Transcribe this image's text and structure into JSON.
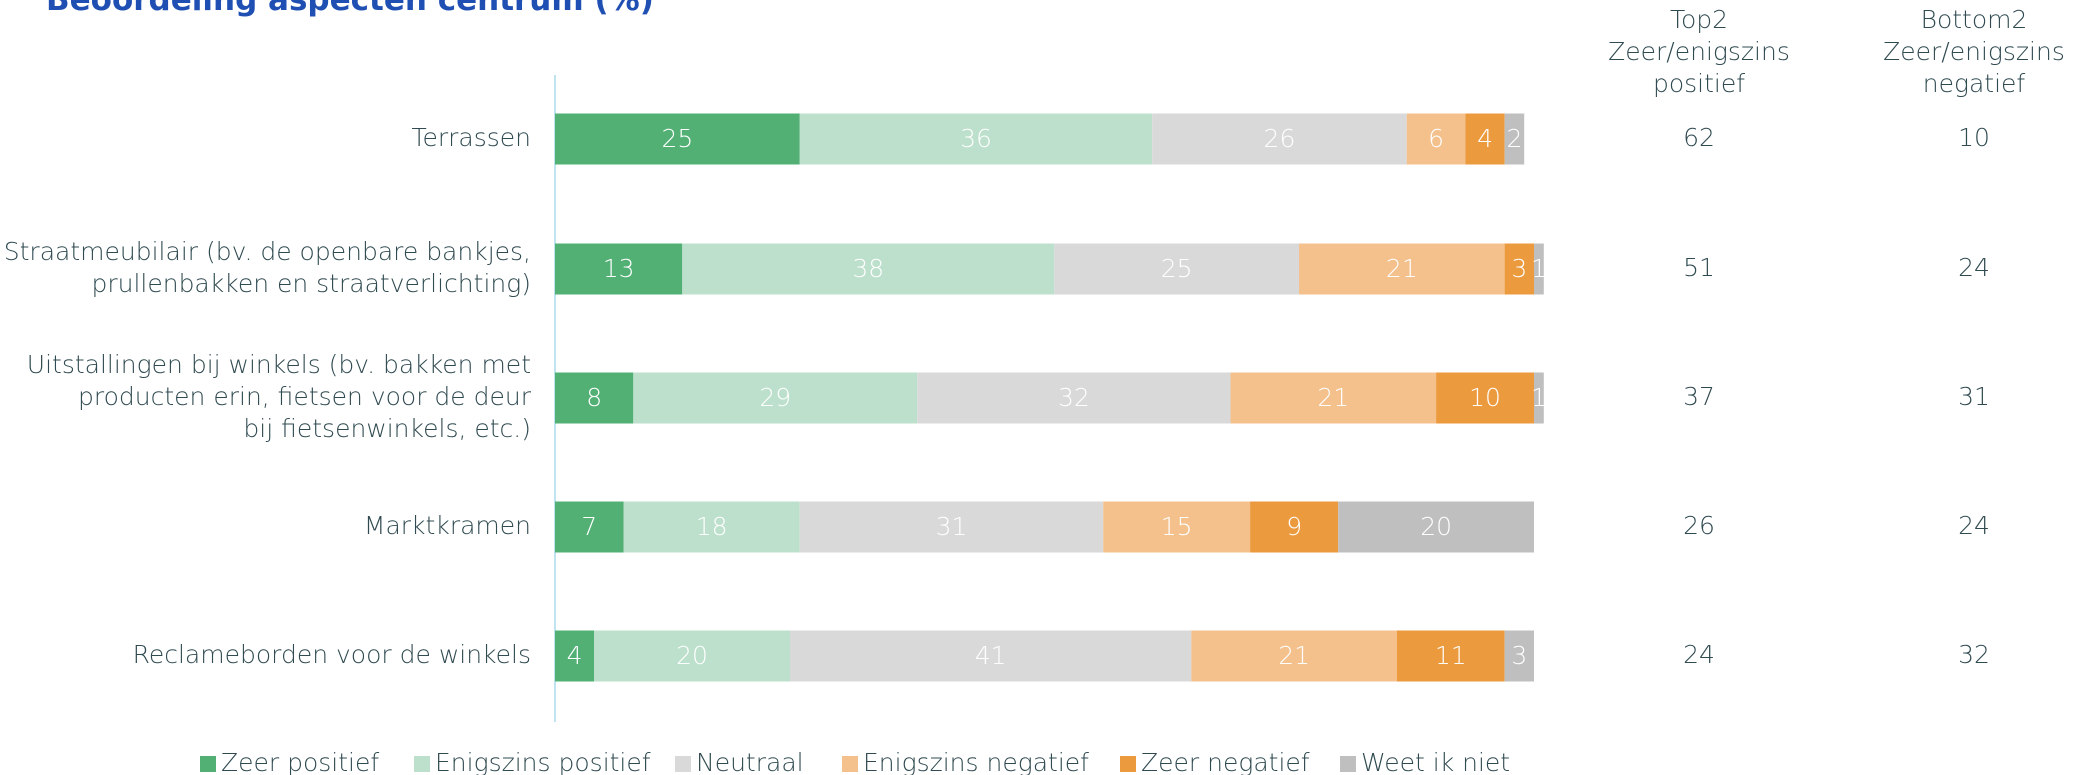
{
  "chart_data": {
    "type": "stacked_barh",
    "title": "Beoordeling aspecten centrum (%)",
    "categories": [
      [
        "Terrassen"
      ],
      [
        "Straatmeubilair (bv. de openbare bankjes,",
        "prullenbakken en straatverlichting)"
      ],
      [
        "Uitstallingen bij winkels (bv. bakken met",
        "producten erin, fietsen voor de deur",
        "bij fietsenwinkels, etc.)"
      ],
      [
        "Marktkramen"
      ],
      [
        "Reclameborden voor de winkels"
      ]
    ],
    "series": [
      {
        "name": "Zeer positief",
        "color": "#52b075",
        "values": [
          25,
          13,
          8,
          7,
          4
        ]
      },
      {
        "name": "Enigszins positief",
        "color": "#bce0cb",
        "values": [
          36,
          38,
          29,
          18,
          20
        ]
      },
      {
        "name": "Neutraal",
        "color": "#d9d9d9",
        "values": [
          26,
          25,
          32,
          31,
          41
        ]
      },
      {
        "name": "Enigszins negatief",
        "color": "#f4c08c",
        "values": [
          6,
          21,
          21,
          15,
          21
        ]
      },
      {
        "name": "Zeer negatief",
        "color": "#ec9a3e",
        "values": [
          4,
          3,
          10,
          9,
          11
        ]
      },
      {
        "name": "Weet ik niet",
        "color": "#bfbfbf",
        "values": [
          2,
          1,
          1,
          20,
          3
        ]
      }
    ],
    "xlim": [
      0,
      100
    ],
    "summary_columns": [
      {
        "header": [
          "Top2",
          "Zeer/enigszins",
          "positief"
        ],
        "values": [
          62,
          51,
          37,
          26,
          24
        ]
      },
      {
        "header": [
          "Bottom2",
          "Zeer/enigszins",
          "negatief"
        ],
        "values": [
          10,
          24,
          31,
          24,
          32
        ]
      }
    ]
  }
}
